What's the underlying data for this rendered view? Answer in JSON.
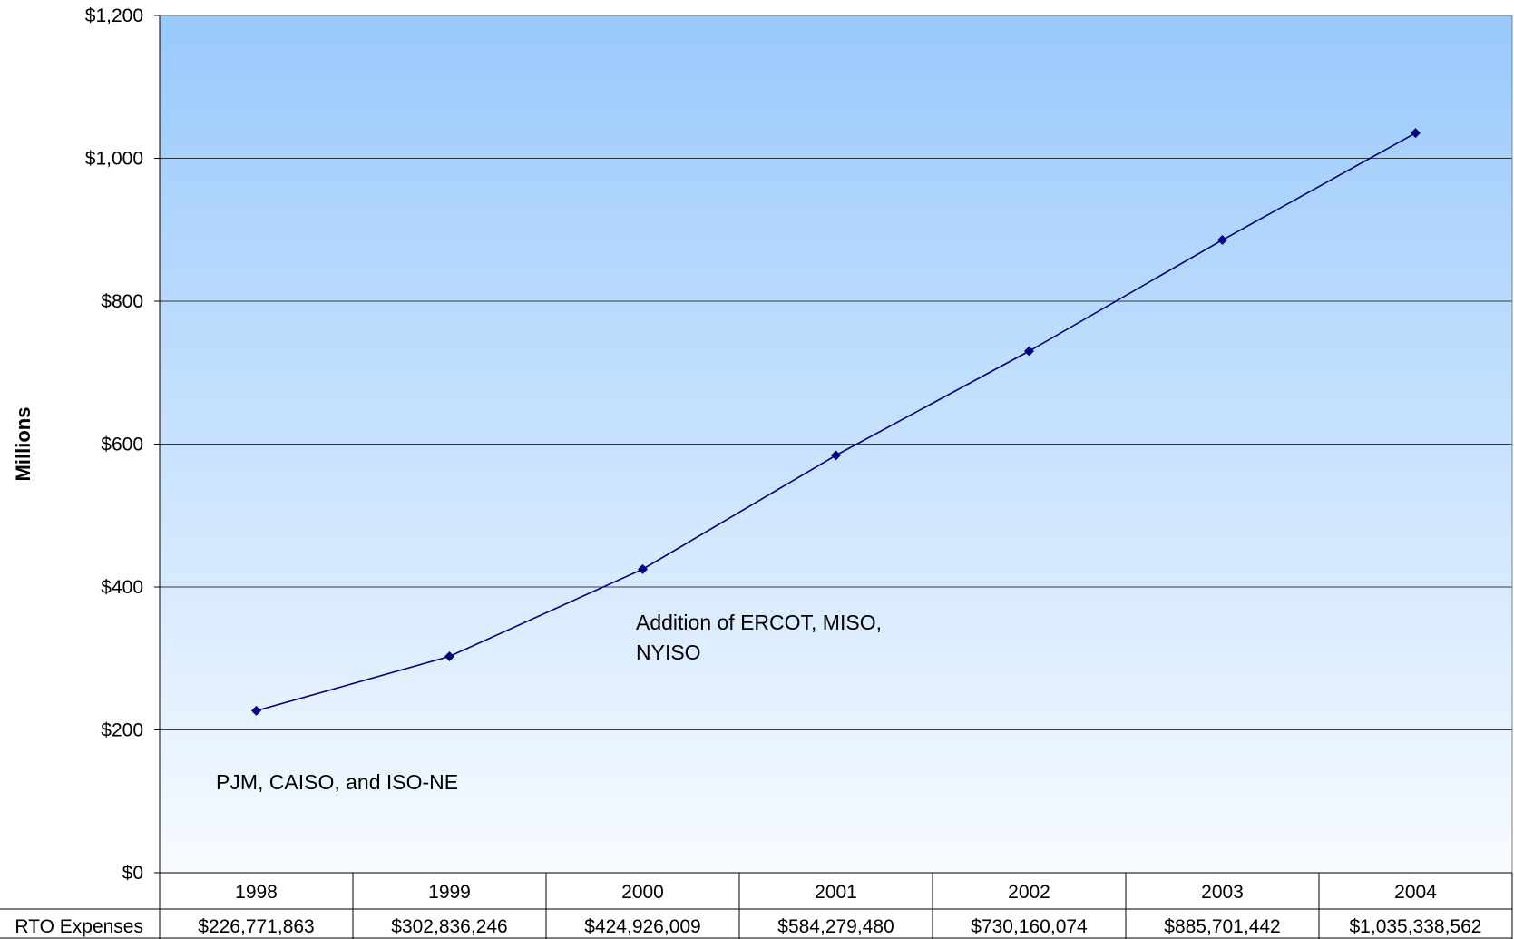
{
  "chart_data": {
    "type": "line",
    "title": "",
    "xlabel": "",
    "ylabel": "Millions",
    "ylim": [
      0,
      1200
    ],
    "yticks": [
      "$0",
      "$200",
      "$400",
      "$600",
      "$800",
      "$1,000",
      "$1,200"
    ],
    "ytick_values": [
      0,
      200,
      400,
      600,
      800,
      1000,
      1200
    ],
    "grid": true,
    "categories": [
      "1998",
      "1999",
      "2000",
      "2001",
      "2002",
      "2003",
      "2004"
    ],
    "series": [
      {
        "name": "RTO Expenses",
        "values": [
          226.771863,
          302.836246,
          424.926009,
          584.27948,
          730.160074,
          885.701442,
          1035.338562
        ],
        "labels": [
          "$226,771,863",
          "$302,836,246",
          "$424,926,009",
          "$584,279,480",
          "$730,160,074",
          "$885,701,442",
          "$1,035,338,562"
        ],
        "color": "#000080"
      }
    ],
    "annotations": [
      {
        "lines": [
          "PJM, CAISO, and ISO-NE"
        ]
      },
      {
        "lines": [
          "Addition of ERCOT, MISO,",
          "NYISO"
        ]
      }
    ],
    "table_row_label": "RTO Expenses",
    "background_gradient": [
      "#99c9fc",
      "#f7fbff"
    ]
  }
}
